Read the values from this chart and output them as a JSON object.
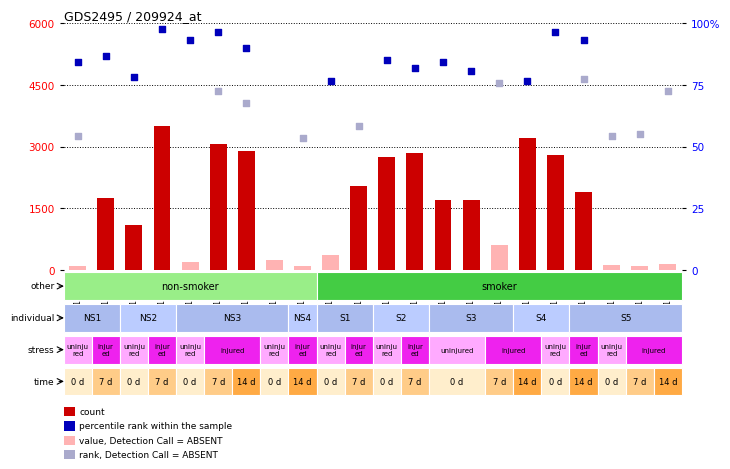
{
  "title": "GDS2495 / 209924_at",
  "samples": [
    "GSM122528",
    "GSM122531",
    "GSM122539",
    "GSM122540",
    "GSM122541",
    "GSM122542",
    "GSM122543",
    "GSM122544",
    "GSM122546",
    "GSM122527",
    "GSM122529",
    "GSM122530",
    "GSM122532",
    "GSM122533",
    "GSM122535",
    "GSM122536",
    "GSM122538",
    "GSM122534",
    "GSM122537",
    "GSM122545",
    "GSM122547",
    "GSM122548"
  ],
  "bar_values_present": [
    0,
    1750,
    1100,
    3500,
    0,
    3050,
    2900,
    0,
    0,
    0,
    2050,
    2750,
    2850,
    1700,
    1700,
    0,
    3200,
    2800,
    1900,
    0,
    0,
    0
  ],
  "bar_values_absent": [
    80,
    0,
    0,
    0,
    200,
    0,
    0,
    250,
    100,
    350,
    0,
    0,
    0,
    0,
    0,
    600,
    0,
    0,
    0,
    120,
    80,
    150
  ],
  "rank_present": [
    5050,
    5200,
    4700,
    5850,
    5600,
    5800,
    5400,
    0,
    0,
    4600,
    0,
    5100,
    4900,
    5050,
    4850,
    0,
    4600,
    5800,
    5600,
    0,
    0,
    0
  ],
  "rank_absent": [
    3250,
    0,
    0,
    0,
    0,
    4350,
    4050,
    0,
    3200,
    0,
    3500,
    0,
    0,
    0,
    0,
    4550,
    0,
    0,
    4650,
    3250,
    3300,
    4350
  ],
  "ylim_left": [
    0,
    6000
  ],
  "ylim_right": [
    0,
    100
  ],
  "yticks_left": [
    0,
    1500,
    3000,
    4500,
    6000
  ],
  "yticks_right": [
    0,
    25,
    50,
    75,
    100
  ],
  "bar_color": "#cc0000",
  "absent_bar_color": "#ffb3b3",
  "rank_color": "#0000bb",
  "rank_absent_color": "#aaaacc",
  "other_nonsmoker_color": "#99ee88",
  "other_smoker_color": "#44cc44",
  "ind_color_a": "#aabbee",
  "ind_color_b": "#bbccff",
  "stress_uninjured_color": "#ffaaff",
  "stress_injured_color": "#ee22ee",
  "time_0d_color": "#ffeecc",
  "time_7d_color": "#ffcc88",
  "time_14d_color": "#ffaa44",
  "individual_row": [
    {
      "label": "NS1",
      "start": 0,
      "end": 1,
      "alt": false
    },
    {
      "label": "NS2",
      "start": 2,
      "end": 3,
      "alt": true
    },
    {
      "label": "NS3",
      "start": 4,
      "end": 7,
      "alt": false
    },
    {
      "label": "NS4",
      "start": 8,
      "end": 8,
      "alt": true
    },
    {
      "label": "S1",
      "start": 9,
      "end": 10,
      "alt": false
    },
    {
      "label": "S2",
      "start": 11,
      "end": 12,
      "alt": true
    },
    {
      "label": "S3",
      "start": 13,
      "end": 15,
      "alt": false
    },
    {
      "label": "S4",
      "start": 16,
      "end": 17,
      "alt": true
    },
    {
      "label": "S5",
      "start": 18,
      "end": 21,
      "alt": false
    }
  ],
  "stress_row": [
    {
      "label": "uninju\nred",
      "start": 0,
      "end": 0,
      "injured": false
    },
    {
      "label": "injur\ned",
      "start": 1,
      "end": 1,
      "injured": true
    },
    {
      "label": "uninju\nred",
      "start": 2,
      "end": 2,
      "injured": false
    },
    {
      "label": "injur\ned",
      "start": 3,
      "end": 3,
      "injured": true
    },
    {
      "label": "uninju\nred",
      "start": 4,
      "end": 4,
      "injured": false
    },
    {
      "label": "injured",
      "start": 5,
      "end": 6,
      "injured": true
    },
    {
      "label": "uninju\nred",
      "start": 7,
      "end": 7,
      "injured": false
    },
    {
      "label": "injur\ned",
      "start": 8,
      "end": 8,
      "injured": true
    },
    {
      "label": "uninju\nred",
      "start": 9,
      "end": 9,
      "injured": false
    },
    {
      "label": "injur\ned",
      "start": 10,
      "end": 10,
      "injured": true
    },
    {
      "label": "uninju\nred",
      "start": 11,
      "end": 11,
      "injured": false
    },
    {
      "label": "injur\ned",
      "start": 12,
      "end": 12,
      "injured": true
    },
    {
      "label": "uninjured",
      "start": 13,
      "end": 14,
      "injured": false
    },
    {
      "label": "injured",
      "start": 15,
      "end": 16,
      "injured": true
    },
    {
      "label": "uninju\nred",
      "start": 17,
      "end": 17,
      "injured": false
    },
    {
      "label": "injur\ned",
      "start": 18,
      "end": 18,
      "injured": true
    },
    {
      "label": "uninju\nred",
      "start": 19,
      "end": 19,
      "injured": false
    },
    {
      "label": "injured",
      "start": 20,
      "end": 21,
      "injured": true
    }
  ],
  "time_row": [
    {
      "label": "0 d",
      "start": 0,
      "end": 0,
      "type": "0d"
    },
    {
      "label": "7 d",
      "start": 1,
      "end": 1,
      "type": "7d"
    },
    {
      "label": "0 d",
      "start": 2,
      "end": 2,
      "type": "0d"
    },
    {
      "label": "7 d",
      "start": 3,
      "end": 3,
      "type": "7d"
    },
    {
      "label": "0 d",
      "start": 4,
      "end": 4,
      "type": "0d"
    },
    {
      "label": "7 d",
      "start": 5,
      "end": 5,
      "type": "7d"
    },
    {
      "label": "14 d",
      "start": 6,
      "end": 6,
      "type": "14d"
    },
    {
      "label": "0 d",
      "start": 7,
      "end": 7,
      "type": "0d"
    },
    {
      "label": "14 d",
      "start": 8,
      "end": 8,
      "type": "14d"
    },
    {
      "label": "0 d",
      "start": 9,
      "end": 9,
      "type": "0d"
    },
    {
      "label": "7 d",
      "start": 10,
      "end": 10,
      "type": "7d"
    },
    {
      "label": "0 d",
      "start": 11,
      "end": 11,
      "type": "0d"
    },
    {
      "label": "7 d",
      "start": 12,
      "end": 12,
      "type": "7d"
    },
    {
      "label": "0 d",
      "start": 13,
      "end": 14,
      "type": "0d"
    },
    {
      "label": "7 d",
      "start": 15,
      "end": 15,
      "type": "7d"
    },
    {
      "label": "14 d",
      "start": 16,
      "end": 16,
      "type": "14d"
    },
    {
      "label": "0 d",
      "start": 17,
      "end": 17,
      "type": "0d"
    },
    {
      "label": "14 d",
      "start": 18,
      "end": 18,
      "type": "14d"
    },
    {
      "label": "0 d",
      "start": 19,
      "end": 19,
      "type": "0d"
    },
    {
      "label": "7 d",
      "start": 20,
      "end": 20,
      "type": "7d"
    },
    {
      "label": "14 d",
      "start": 21,
      "end": 21,
      "type": "14d"
    }
  ],
  "legend_items": [
    {
      "color": "#cc0000",
      "label": "count"
    },
    {
      "color": "#0000bb",
      "label": "percentile rank within the sample"
    },
    {
      "color": "#ffb3b3",
      "label": "value, Detection Call = ABSENT"
    },
    {
      "color": "#aaaacc",
      "label": "rank, Detection Call = ABSENT"
    }
  ]
}
